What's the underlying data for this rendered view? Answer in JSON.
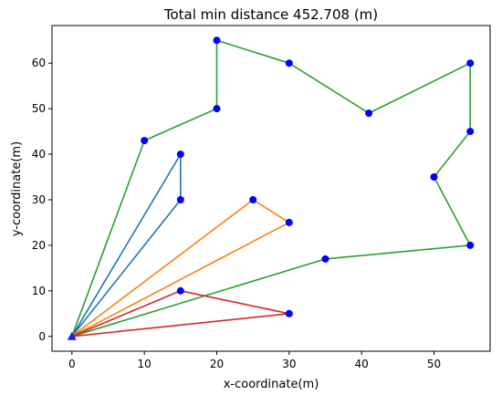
{
  "chart_data": {
    "type": "line",
    "title": "Total min distance 452.708 (m)",
    "xlabel": "x-coordinate(m)",
    "ylabel": "y-coordinate(m)",
    "xlim": [
      -2.75,
      57.75
    ],
    "ylim": [
      -3.25,
      68.25
    ],
    "x_ticks": [
      0,
      10,
      20,
      30,
      40,
      50
    ],
    "y_ticks": [
      0,
      10,
      20,
      30,
      40,
      50,
      60
    ],
    "grid": false,
    "depot": {
      "x": 0,
      "y": 0,
      "color": "#1a1aff",
      "marker": "triangle"
    },
    "customer_color": "#0000ff",
    "series": [
      {
        "color": "#1f77b4",
        "points": [
          [
            0,
            0
          ],
          [
            15,
            30
          ],
          [
            15,
            40
          ],
          [
            0,
            0
          ]
        ]
      },
      {
        "color": "#ff7f0e",
        "points": [
          [
            0,
            0
          ],
          [
            30,
            25
          ],
          [
            25,
            30
          ],
          [
            0,
            0
          ]
        ]
      },
      {
        "color": "#2ca02c",
        "points": [
          [
            0,
            0
          ],
          [
            35,
            17
          ],
          [
            55,
            20
          ],
          [
            50,
            35
          ],
          [
            55,
            45
          ],
          [
            55,
            60
          ],
          [
            41,
            49
          ],
          [
            30,
            60
          ],
          [
            20,
            65
          ],
          [
            20,
            50
          ],
          [
            10,
            43
          ],
          [
            0,
            0
          ]
        ]
      },
      {
        "color": "#d62728",
        "points": [
          [
            0,
            0
          ],
          [
            30,
            5
          ],
          [
            15,
            10
          ],
          [
            0,
            0
          ]
        ]
      }
    ],
    "customers": [
      [
        15,
        30
      ],
      [
        15,
        40
      ],
      [
        30,
        25
      ],
      [
        25,
        30
      ],
      [
        35,
        17
      ],
      [
        55,
        20
      ],
      [
        50,
        35
      ],
      [
        55,
        45
      ],
      [
        55,
        60
      ],
      [
        41,
        49
      ],
      [
        30,
        60
      ],
      [
        20,
        65
      ],
      [
        20,
        50
      ],
      [
        10,
        43
      ],
      [
        30,
        5
      ],
      [
        15,
        10
      ]
    ]
  }
}
